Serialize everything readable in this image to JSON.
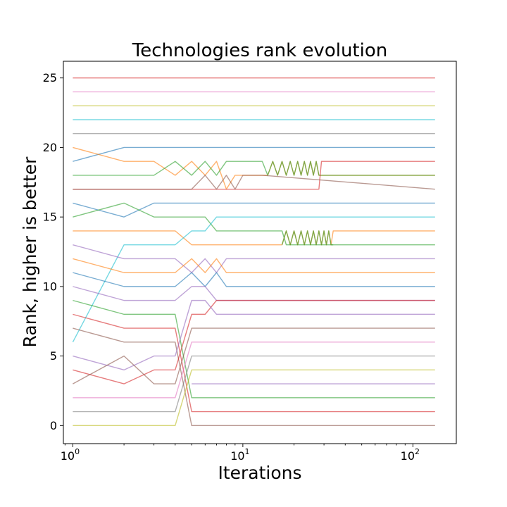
{
  "chart_data": {
    "type": "line",
    "title": "Technologies rank evolution",
    "xlabel": "Iterations",
    "ylabel": "Rank, higher is better",
    "xscale": "log",
    "xlim": [
      0.88,
      180
    ],
    "ylim": [
      -1.3,
      26.2
    ],
    "xticks": [
      {
        "value": 1,
        "base": "10",
        "exp": "0"
      },
      {
        "value": 10,
        "base": "10",
        "exp": "1"
      },
      {
        "value": 100,
        "base": "10",
        "exp": "2"
      }
    ],
    "yticks": [
      {
        "value": 0,
        "label": "0"
      },
      {
        "value": 5,
        "label": "5"
      },
      {
        "value": 10,
        "label": "10"
      },
      {
        "value": 15,
        "label": "15"
      },
      {
        "value": 20,
        "label": "20"
      },
      {
        "value": 25,
        "label": "25"
      }
    ],
    "grid": false,
    "legend": "none",
    "x_end": 135,
    "series": [
      {
        "color": "#d62728",
        "points": [
          [
            1,
            25
          ],
          [
            135,
            25
          ]
        ]
      },
      {
        "color": "#e377c2",
        "points": [
          [
            1,
            24
          ],
          [
            135,
            24
          ]
        ]
      },
      {
        "color": "#bcbd22",
        "points": [
          [
            1,
            23
          ],
          [
            135,
            23
          ]
        ]
      },
      {
        "color": "#17becf",
        "points": [
          [
            1,
            22
          ],
          [
            135,
            22
          ]
        ]
      },
      {
        "color": "#7f7f7f",
        "points": [
          [
            1,
            21
          ],
          [
            135,
            21
          ]
        ]
      },
      {
        "color": "#1f77b4",
        "points": [
          [
            1,
            19
          ],
          [
            2,
            20
          ],
          [
            135,
            20
          ]
        ]
      },
      {
        "color": "#ff7f0e",
        "points": [
          [
            1,
            20
          ],
          [
            2,
            19
          ],
          [
            3,
            19
          ],
          [
            4,
            18
          ],
          [
            5,
            19
          ],
          [
            6,
            18
          ],
          [
            7,
            19
          ],
          [
            8,
            17
          ],
          [
            9,
            18
          ],
          [
            10,
            18
          ],
          [
            13,
            18
          ],
          [
            14,
            18
          ],
          [
            15,
            19
          ],
          [
            16,
            18
          ],
          [
            17,
            19
          ],
          [
            18,
            18
          ],
          [
            19,
            19
          ],
          [
            20,
            18
          ],
          [
            21,
            19
          ],
          [
            22,
            18
          ],
          [
            23,
            19
          ],
          [
            24,
            18
          ],
          [
            25,
            19
          ],
          [
            26,
            18
          ],
          [
            27,
            19
          ],
          [
            28,
            18
          ],
          [
            135,
            18
          ]
        ]
      },
      {
        "color": "#2ca02c",
        "points": [
          [
            1,
            18
          ],
          [
            3,
            18
          ],
          [
            4,
            19
          ],
          [
            5,
            18
          ],
          [
            6,
            19
          ],
          [
            7,
            18
          ],
          [
            8,
            19
          ],
          [
            13,
            19
          ],
          [
            14,
            18
          ],
          [
            15,
            19
          ],
          [
            16,
            18
          ],
          [
            17,
            19
          ],
          [
            18,
            18
          ],
          [
            19,
            19
          ],
          [
            20,
            18
          ],
          [
            21,
            19
          ],
          [
            22,
            18
          ],
          [
            23,
            19
          ],
          [
            24,
            18
          ],
          [
            25,
            19
          ],
          [
            26,
            18
          ],
          [
            27,
            19
          ],
          [
            28,
            18
          ],
          [
            135,
            18
          ]
        ]
      },
      {
        "color": "#d62728",
        "points": [
          [
            1,
            17
          ],
          [
            28,
            17
          ],
          [
            29,
            19
          ],
          [
            135,
            19
          ]
        ]
      },
      {
        "color": "#8c564b",
        "points": [
          [
            1,
            17
          ],
          [
            5,
            17
          ],
          [
            6,
            18
          ],
          [
            7,
            17
          ],
          [
            8,
            18
          ],
          [
            9,
            17
          ],
          [
            10,
            18
          ],
          [
            13,
            18
          ],
          [
            135,
            17
          ]
        ]
      },
      {
        "color": "#1f77b4",
        "points": [
          [
            1,
            16
          ],
          [
            2,
            15
          ],
          [
            3,
            16
          ],
          [
            135,
            16
          ]
        ]
      },
      {
        "color": "#2ca02c",
        "points": [
          [
            1,
            15
          ],
          [
            2,
            16
          ],
          [
            3,
            15
          ],
          [
            5,
            15
          ],
          [
            6,
            15
          ],
          [
            7,
            14
          ],
          [
            17,
            14
          ],
          [
            18,
            13
          ],
          [
            135,
            13
          ]
        ]
      },
      {
        "color": "#ff7f0e",
        "points": [
          [
            1,
            14
          ],
          [
            4,
            14
          ],
          [
            5,
            13
          ],
          [
            17,
            13
          ],
          [
            18,
            14
          ],
          [
            19,
            13
          ],
          [
            20,
            14
          ],
          [
            21,
            13
          ],
          [
            22,
            14
          ],
          [
            23,
            13
          ],
          [
            24,
            14
          ],
          [
            25,
            13
          ],
          [
            26,
            14
          ],
          [
            27,
            13
          ],
          [
            28,
            14
          ],
          [
            29,
            13
          ],
          [
            30,
            14
          ],
          [
            31,
            13
          ],
          [
            32,
            14
          ],
          [
            33,
            13
          ],
          [
            34,
            14
          ],
          [
            135,
            14
          ]
        ]
      },
      {
        "color": "#2ca02c",
        "points": [
          [
            17,
            13
          ],
          [
            18,
            14
          ],
          [
            19,
            13
          ],
          [
            20,
            14
          ],
          [
            21,
            13
          ],
          [
            22,
            14
          ],
          [
            23,
            13
          ],
          [
            24,
            14
          ],
          [
            25,
            13
          ],
          [
            26,
            14
          ],
          [
            27,
            13
          ],
          [
            28,
            14
          ],
          [
            29,
            13
          ],
          [
            30,
            14
          ],
          [
            31,
            13
          ],
          [
            32,
            14
          ],
          [
            33,
            13
          ],
          [
            34,
            13
          ]
        ]
      },
      {
        "color": "#17becf",
        "points": [
          [
            1,
            6
          ],
          [
            2,
            13
          ],
          [
            4,
            13
          ],
          [
            5,
            14
          ],
          [
            6,
            14
          ],
          [
            7,
            15
          ],
          [
            135,
            15
          ]
        ]
      },
      {
        "color": "#9467bd",
        "points": [
          [
            1,
            13
          ],
          [
            2,
            12
          ],
          [
            4,
            12
          ],
          [
            5,
            11
          ],
          [
            6,
            12
          ],
          [
            7,
            11
          ],
          [
            8,
            12
          ],
          [
            135,
            12
          ]
        ]
      },
      {
        "color": "#ff7f0e",
        "points": [
          [
            1,
            12
          ],
          [
            2,
            11
          ],
          [
            4,
            11
          ],
          [
            5,
            12
          ],
          [
            6,
            11
          ],
          [
            7,
            12
          ],
          [
            8,
            11
          ],
          [
            135,
            11
          ]
        ]
      },
      {
        "color": "#1f77b4",
        "points": [
          [
            1,
            11
          ],
          [
            2,
            10
          ],
          [
            4,
            10
          ],
          [
            5,
            11
          ],
          [
            6,
            10
          ],
          [
            7,
            11
          ],
          [
            8,
            10
          ],
          [
            135,
            10
          ]
        ]
      },
      {
        "color": "#9467bd",
        "points": [
          [
            1,
            10
          ],
          [
            2,
            9
          ],
          [
            4,
            9
          ],
          [
            5,
            10
          ],
          [
            6,
            10
          ],
          [
            7,
            9
          ],
          [
            8,
            9
          ],
          [
            135,
            9
          ]
        ]
      },
      {
        "color": "#2ca02c",
        "points": [
          [
            1,
            9
          ],
          [
            2,
            8
          ],
          [
            4,
            8
          ],
          [
            5,
            2
          ],
          [
            135,
            2
          ]
        ]
      },
      {
        "color": "#d62728",
        "points": [
          [
            1,
            8
          ],
          [
            2,
            7
          ],
          [
            4,
            7
          ],
          [
            5,
            1
          ],
          [
            135,
            1
          ]
        ]
      },
      {
        "color": "#8c564b",
        "points": [
          [
            1,
            7
          ],
          [
            2,
            6
          ],
          [
            4,
            6
          ],
          [
            5,
            0
          ],
          [
            135,
            0
          ]
        ]
      },
      {
        "color": "#d62728",
        "points": [
          [
            1,
            4
          ],
          [
            2,
            3
          ],
          [
            3,
            4
          ],
          [
            4,
            4
          ],
          [
            5,
            8
          ],
          [
            6,
            8
          ],
          [
            7,
            9
          ],
          [
            135,
            9
          ]
        ]
      },
      {
        "color": "#9467bd",
        "points": [
          [
            1,
            5
          ],
          [
            2,
            4
          ],
          [
            3,
            5
          ],
          [
            4,
            5
          ],
          [
            5,
            9
          ],
          [
            6,
            9
          ],
          [
            7,
            8
          ],
          [
            135,
            8
          ]
        ]
      },
      {
        "color": "#8c564b",
        "points": [
          [
            1,
            3
          ],
          [
            2,
            5
          ],
          [
            3,
            3
          ],
          [
            4,
            3
          ],
          [
            5,
            7
          ],
          [
            135,
            7
          ]
        ]
      },
      {
        "color": "#e377c2",
        "points": [
          [
            1,
            2
          ],
          [
            4,
            2
          ],
          [
            5,
            6
          ],
          [
            135,
            6
          ]
        ]
      },
      {
        "color": "#7f7f7f",
        "points": [
          [
            1,
            1
          ],
          [
            4,
            1
          ],
          [
            5,
            5
          ],
          [
            135,
            5
          ]
        ]
      },
      {
        "color": "#bcbd22",
        "points": [
          [
            1,
            0
          ],
          [
            4,
            0
          ],
          [
            5,
            4
          ],
          [
            135,
            4
          ]
        ]
      },
      {
        "color": "#9467bd",
        "points": [
          [
            5,
            3
          ],
          [
            135,
            3
          ]
        ]
      }
    ]
  }
}
